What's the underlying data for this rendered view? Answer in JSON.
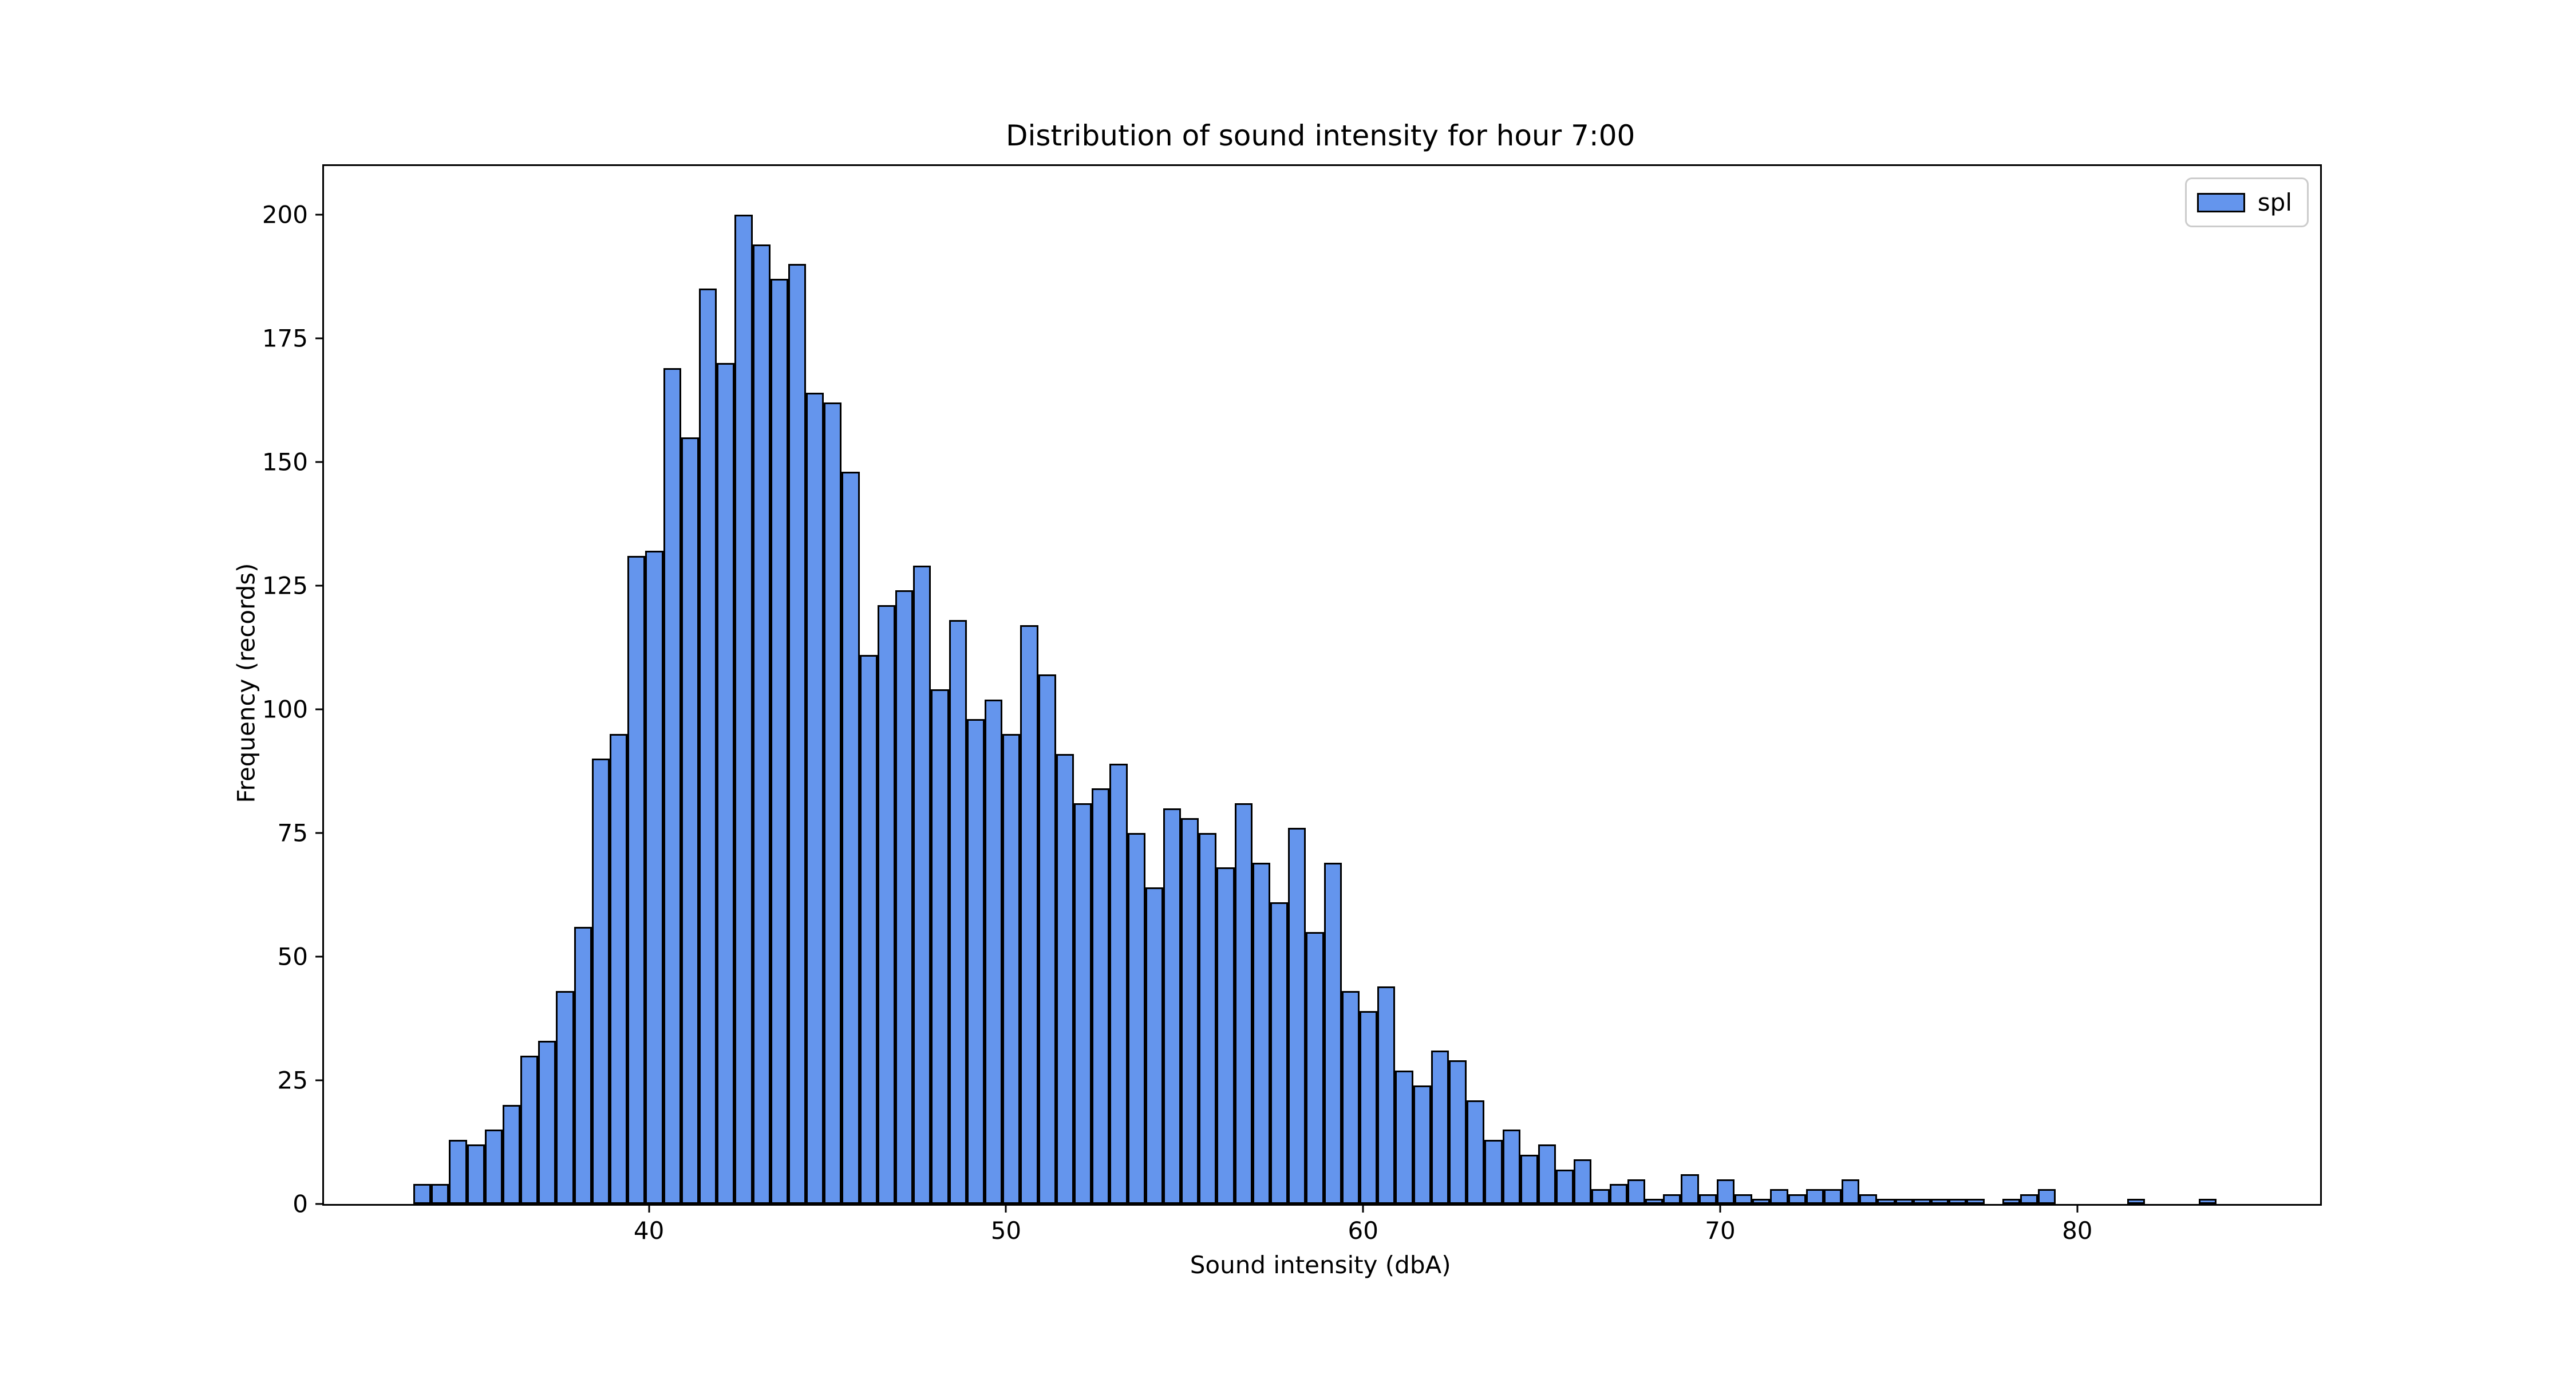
{
  "title": "Distribution of sound intensity for hour 7:00",
  "legend": {
    "items": [
      {
        "label": "spl",
        "color": "#6495ED"
      }
    ]
  },
  "axes": {
    "xlabel": "Sound intensity (dbA)",
    "ylabel": "Frequency (records)",
    "x_ticks": [
      40,
      50,
      60,
      70,
      80
    ],
    "y_ticks": [
      0,
      25,
      50,
      75,
      100,
      125,
      150,
      175,
      200
    ],
    "xlim": [
      30.9,
      86.8
    ],
    "ylim": [
      0,
      209.8
    ]
  },
  "chart_data": {
    "type": "bar",
    "subtype": "histogram",
    "title": "Distribution of sound intensity for hour 7:00",
    "xlabel": "Sound intensity (dbA)",
    "ylabel": "Frequency (records)",
    "series_name": "spl",
    "legend_position": "upper right",
    "grid": false,
    "bar_color": "#6495ED",
    "bar_edge_color": "#000000",
    "xlim": [
      30.9,
      86.8
    ],
    "ylim": [
      0,
      209.8
    ],
    "bin_start": 33.4,
    "bin_width": 0.5,
    "values": [
      4,
      4,
      13,
      12,
      15,
      20,
      30,
      33,
      43,
      56,
      90,
      95,
      131,
      132,
      169,
      155,
      185,
      170,
      200,
      194,
      187,
      190,
      164,
      162,
      148,
      111,
      121,
      124,
      129,
      104,
      118,
      98,
      102,
      95,
      117,
      107,
      91,
      81,
      84,
      89,
      75,
      64,
      80,
      78,
      75,
      68,
      81,
      69,
      61,
      76,
      55,
      69,
      43,
      39,
      44,
      27,
      24,
      31,
      29,
      21,
      13,
      15,
      10,
      12,
      7,
      9,
      3,
      4,
      5,
      1,
      2,
      6,
      2,
      5,
      2,
      1,
      3,
      2,
      3,
      3,
      5,
      2,
      1,
      1,
      1,
      1,
      1,
      1,
      0,
      1,
      2,
      3,
      0,
      0,
      0,
      0,
      1,
      0,
      0,
      0,
      1
    ]
  }
}
